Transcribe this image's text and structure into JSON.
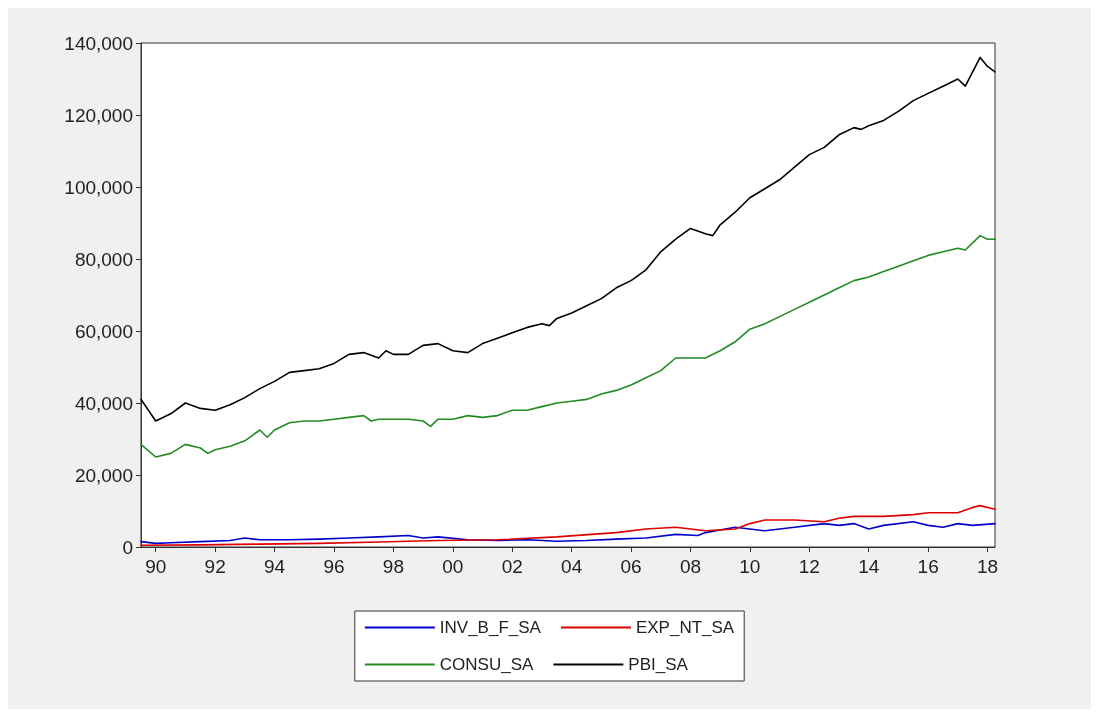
{
  "chart_data": {
    "type": "line",
    "xlim": [
      "1990-01",
      "2018-10"
    ],
    "xticks": [
      {
        "value": "1990-07",
        "label": "90"
      },
      {
        "value": "1992-07",
        "label": "92"
      },
      {
        "value": "1994-07",
        "label": "94"
      },
      {
        "value": "1996-07",
        "label": "96"
      },
      {
        "value": "1998-07",
        "label": "98"
      },
      {
        "value": "2000-07",
        "label": "00"
      },
      {
        "value": "2002-07",
        "label": "02"
      },
      {
        "value": "2004-07",
        "label": "04"
      },
      {
        "value": "2006-07",
        "label": "06"
      },
      {
        "value": "2008-07",
        "label": "08"
      },
      {
        "value": "2010-07",
        "label": "10"
      },
      {
        "value": "2012-07",
        "label": "12"
      },
      {
        "value": "2014-07",
        "label": "14"
      },
      {
        "value": "2016-07",
        "label": "16"
      },
      {
        "value": "2018-07",
        "label": "18"
      }
    ],
    "ylim": [
      0,
      140000
    ],
    "yticks": [
      {
        "value": 0,
        "label": "0"
      },
      {
        "value": 20000,
        "label": "20,000"
      },
      {
        "value": 40000,
        "label": "40,000"
      },
      {
        "value": 60000,
        "label": "60,000"
      },
      {
        "value": 80000,
        "label": "80,000"
      },
      {
        "value": 100000,
        "label": "100,000"
      },
      {
        "value": 120000,
        "label": "120,000"
      },
      {
        "value": 140000,
        "label": "140,000"
      }
    ],
    "grid": false,
    "legend": "bottom",
    "marker": "none",
    "line_style": "solid",
    "series": [
      {
        "name": "INV_B_F_SA",
        "color": "#0000cc",
        "x": [
          "1990-01",
          "1990-07",
          "1991-01",
          "1992-01",
          "1993-01",
          "1993-07",
          "1994-01",
          "1995-01",
          "1996-01",
          "1997-01",
          "1998-01",
          "1999-01",
          "1999-07",
          "2000-01",
          "2001-01",
          "2002-01",
          "2003-01",
          "2004-01",
          "2005-01",
          "2006-01",
          "2007-01",
          "2008-01",
          "2008-10",
          "2009-01",
          "2010-01",
          "2010-07",
          "2011-01",
          "2012-01",
          "2013-01",
          "2013-07",
          "2014-01",
          "2014-07",
          "2015-01",
          "2016-01",
          "2016-07",
          "2017-01",
          "2017-07",
          "2018-01",
          "2018-10"
        ],
        "values": [
          1500,
          1000,
          1200,
          1500,
          1800,
          2500,
          2000,
          2000,
          2200,
          2500,
          2800,
          3200,
          2500,
          2800,
          2000,
          1800,
          2000,
          1600,
          1800,
          2200,
          2500,
          3500,
          3200,
          4000,
          5500,
          5000,
          4500,
          5500,
          6500,
          6000,
          6500,
          5000,
          6000,
          7000,
          6000,
          5500,
          6500,
          6000,
          6500
        ]
      },
      {
        "name": "EXP_NT_SA",
        "color": "#dd0000",
        "x": [
          "1990-01",
          "1992-01",
          "1994-01",
          "1996-01",
          "1998-01",
          "2000-01",
          "2002-01",
          "2004-01",
          "2006-01",
          "2007-01",
          "2008-01",
          "2008-07",
          "2009-01",
          "2010-01",
          "2010-07",
          "2011-01",
          "2012-01",
          "2013-01",
          "2013-07",
          "2014-01",
          "2015-01",
          "2016-01",
          "2016-07",
          "2017-01",
          "2017-07",
          "2018-01",
          "2018-04",
          "2018-10"
        ],
        "values": [
          500,
          600,
          800,
          1000,
          1400,
          1800,
          2000,
          2800,
          4000,
          5000,
          5500,
          5000,
          4500,
          5000,
          6500,
          7500,
          7500,
          7000,
          8000,
          8500,
          8500,
          9000,
          9500,
          9500,
          9500,
          11000,
          11500,
          10500
        ]
      },
      {
        "name": "CONSU_SA",
        "color": "#228b22",
        "x": [
          "1990-01",
          "1990-07",
          "1991-01",
          "1991-07",
          "1992-01",
          "1992-04",
          "1992-07",
          "1993-01",
          "1993-07",
          "1994-01",
          "1994-04",
          "1994-07",
          "1995-01",
          "1995-07",
          "1996-01",
          "1996-07",
          "1997-01",
          "1997-07",
          "1997-10",
          "1998-01",
          "1998-07",
          "1999-01",
          "1999-07",
          "1999-10",
          "2000-01",
          "2000-07",
          "2001-01",
          "2001-07",
          "2002-01",
          "2002-07",
          "2003-01",
          "2003-07",
          "2004-01",
          "2004-07",
          "2005-01",
          "2005-07",
          "2006-01",
          "2006-07",
          "2007-01",
          "2007-07",
          "2008-01",
          "2008-07",
          "2009-01",
          "2009-07",
          "2010-01",
          "2010-07",
          "2011-01",
          "2011-07",
          "2012-01",
          "2012-07",
          "2013-01",
          "2013-07",
          "2014-01",
          "2014-07",
          "2015-01",
          "2015-07",
          "2016-01",
          "2016-07",
          "2017-01",
          "2017-07",
          "2017-10",
          "2018-04",
          "2018-07",
          "2018-10"
        ],
        "values": [
          28500,
          25000,
          26000,
          28500,
          27500,
          26000,
          27000,
          28000,
          29500,
          32500,
          30500,
          32500,
          34500,
          35000,
          35000,
          35500,
          36000,
          36500,
          35000,
          35500,
          35500,
          35500,
          35000,
          33500,
          35500,
          35500,
          36500,
          36000,
          36500,
          38000,
          38000,
          39000,
          40000,
          40500,
          41000,
          42500,
          43500,
          45000,
          47000,
          49000,
          52500,
          52500,
          52500,
          54500,
          57000,
          60500,
          62000,
          64000,
          66000,
          68000,
          70000,
          72000,
          74000,
          75000,
          76500,
          78000,
          79500,
          81000,
          82000,
          83000,
          82500,
          86500,
          85500,
          85500
        ]
      },
      {
        "name": "PBI_SA",
        "color": "#000000",
        "x": [
          "1990-01",
          "1990-07",
          "1991-01",
          "1991-07",
          "1992-01",
          "1992-07",
          "1993-01",
          "1993-07",
          "1994-01",
          "1994-07",
          "1995-01",
          "1995-07",
          "1996-01",
          "1996-07",
          "1997-01",
          "1997-07",
          "1998-01",
          "1998-04",
          "1998-07",
          "1999-01",
          "1999-07",
          "2000-01",
          "2000-07",
          "2001-01",
          "2001-07",
          "2002-01",
          "2002-07",
          "2003-01",
          "2003-07",
          "2003-10",
          "2004-01",
          "2004-07",
          "2005-01",
          "2005-07",
          "2006-01",
          "2006-07",
          "2007-01",
          "2007-07",
          "2008-01",
          "2008-07",
          "2009-01",
          "2009-04",
          "2009-07",
          "2010-01",
          "2010-07",
          "2011-01",
          "2011-07",
          "2012-01",
          "2012-07",
          "2013-01",
          "2013-07",
          "2014-01",
          "2014-04",
          "2014-07",
          "2015-01",
          "2015-07",
          "2016-01",
          "2016-07",
          "2017-01",
          "2017-07",
          "2017-10",
          "2018-04",
          "2018-07",
          "2018-10"
        ],
        "values": [
          41000,
          35000,
          37000,
          40000,
          38500,
          38000,
          39500,
          41500,
          44000,
          46000,
          48500,
          49000,
          49500,
          51000,
          53500,
          54000,
          52500,
          54500,
          53500,
          53500,
          56000,
          56500,
          54500,
          54000,
          56500,
          58000,
          59500,
          61000,
          62000,
          61500,
          63500,
          65000,
          67000,
          69000,
          72000,
          74000,
          77000,
          82000,
          85500,
          88500,
          87000,
          86500,
          89500,
          93000,
          97000,
          99500,
          102000,
          105500,
          109000,
          111000,
          114500,
          116500,
          116000,
          117000,
          118500,
          121000,
          124000,
          126000,
          128000,
          130000,
          128000,
          136000,
          133500,
          132000
        ]
      }
    ]
  }
}
